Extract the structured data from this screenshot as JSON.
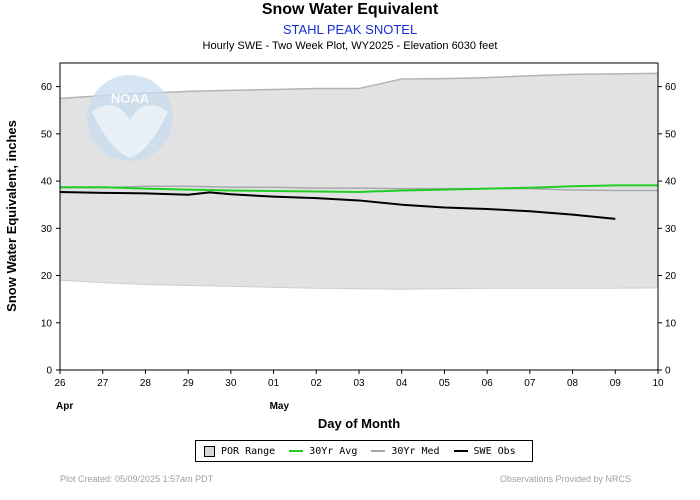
{
  "header": {
    "title": "Snow Water Equivalent",
    "station": "STAHL PEAK SNOTEL",
    "description": "Hourly SWE - Two Week Plot, WY2025 -  Elevation 6030 feet"
  },
  "logo": {
    "text": "NOAA"
  },
  "chart_data": {
    "type": "line",
    "xlabel": "Day of Month",
    "ylabel": "Snow Water Equivalent, inches",
    "ylim": [
      0,
      65
    ],
    "y_ticks": [
      0,
      10,
      20,
      30,
      40,
      50,
      60
    ],
    "x_tick_labels": [
      "26",
      "27",
      "28",
      "29",
      "30",
      "01",
      "02",
      "03",
      "04",
      "05",
      "06",
      "07",
      "08",
      "09",
      "10"
    ],
    "x_dates": [
      "Apr 26",
      "Apr 27",
      "Apr 28",
      "Apr 29",
      "Apr 30",
      "May 01",
      "May 02",
      "May 03",
      "May 04",
      "May 05",
      "May 06",
      "May 07",
      "May 08",
      "May 09",
      "May 10"
    ],
    "month_labels": [
      {
        "label": "Apr",
        "date": "Apr 26"
      },
      {
        "label": "May",
        "date": "May 01"
      }
    ],
    "grid": false,
    "series": [
      {
        "name": "POR Range",
        "kind": "range",
        "color": "#e2e2e2",
        "x": [
          "Apr 26",
          "Apr 27",
          "Apr 28",
          "Apr 29",
          "Apr 30",
          "May 01",
          "May 02",
          "May 03",
          "May 04",
          "May 05",
          "May 06",
          "May 07",
          "May 08",
          "May 09",
          "May 10"
        ],
        "upper": [
          57.5,
          58.1,
          58.6,
          59.0,
          59.2,
          59.4,
          59.6,
          59.6,
          61.6,
          61.7,
          61.9,
          62.3,
          62.6,
          62.7,
          62.8
        ],
        "lower": [
          19.0,
          18.5,
          18.1,
          17.9,
          17.7,
          17.5,
          17.3,
          17.2,
          17.1,
          17.2,
          17.3,
          17.3,
          17.3,
          17.3,
          17.4
        ]
      },
      {
        "name": "30Yr Avg",
        "color": "#22cc22",
        "x": [
          "Apr 26",
          "Apr 27",
          "Apr 28",
          "Apr 29",
          "Apr 30",
          "May 01",
          "May 02",
          "May 03",
          "May 04",
          "May 05",
          "May 06",
          "May 07",
          "May 08",
          "May 09",
          "May 10"
        ],
        "values": [
          38.7,
          38.7,
          38.4,
          38.2,
          38.0,
          37.9,
          37.8,
          37.7,
          38.0,
          38.2,
          38.4,
          38.6,
          38.9,
          39.1,
          39.1
        ]
      },
      {
        "name": "30Yr Med",
        "color": "#a8a8a8",
        "x": [
          "Apr 26",
          "Apr 27",
          "Apr 28",
          "Apr 29",
          "Apr 30",
          "May 01",
          "May 02",
          "May 03",
          "May 04",
          "May 05",
          "May 06",
          "May 07",
          "May 08",
          "May 09",
          "May 10"
        ],
        "values": [
          38.6,
          38.6,
          38.9,
          38.9,
          38.7,
          38.7,
          38.5,
          38.5,
          38.4,
          38.4,
          38.4,
          38.4,
          38.1,
          38.0,
          38.0
        ]
      },
      {
        "name": "SWE Obs",
        "color": "#000000",
        "x": [
          "Apr 26",
          "Apr 27",
          "Apr 28",
          "Apr 29",
          "Apr 29 12:00",
          "Apr 30",
          "May 01",
          "May 02",
          "May 03",
          "May 04",
          "May 05",
          "May 06",
          "May 07",
          "May 08",
          "May 09"
        ],
        "values": [
          37.7,
          37.5,
          37.4,
          37.1,
          37.6,
          37.2,
          36.7,
          36.4,
          35.9,
          35.0,
          34.4,
          34.1,
          33.6,
          32.9,
          32.0
        ]
      }
    ]
  },
  "legend": {
    "items": [
      {
        "label": "POR Range",
        "type": "box",
        "color": "#d8d8d8"
      },
      {
        "label": "30Yr Avg",
        "type": "line",
        "color": "#22cc22"
      },
      {
        "label": "30Yr Med",
        "type": "line",
        "color": "#a8a8a8"
      },
      {
        "label": "SWE Obs",
        "type": "line",
        "color": "#000000"
      }
    ]
  },
  "footer": {
    "created": "Plot Created: 05/09/2025 1:57am PDT",
    "credit": "Observations Provided by NRCS"
  }
}
